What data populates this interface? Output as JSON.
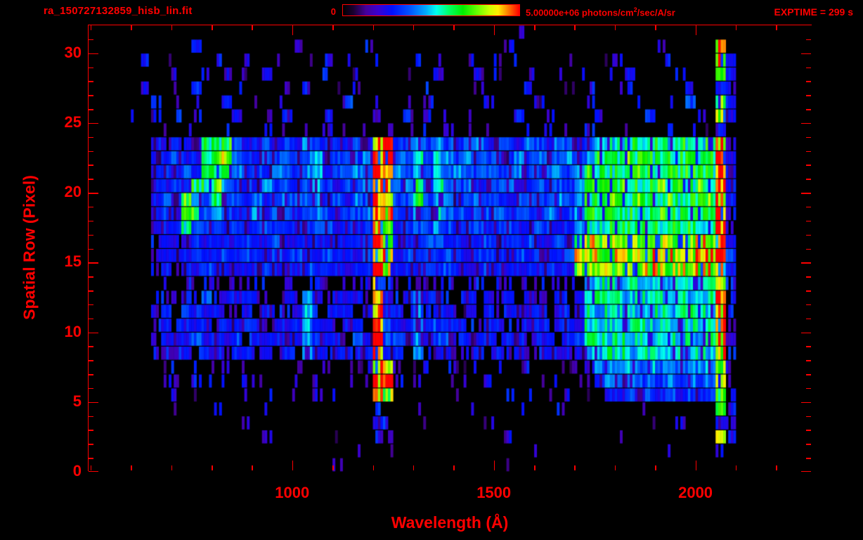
{
  "colors": {
    "accent": "#ff0000",
    "background": "#000000"
  },
  "header": {
    "filename": "ra_150727132859_hisb_lin.fit",
    "colorbar_min": "0",
    "colorbar_max": {
      "prefix": "5.00000e+06 photons/cm",
      "sup": "2",
      "suffix": "/sec/A/sr"
    },
    "exptime": "EXPTIME = 299 s"
  },
  "chart_data": {
    "type": "heatmap",
    "title": "ra_150727132859_hisb_lin.fit",
    "xlabel": "Wavelength (Å)",
    "ylabel": "Spatial Row (Pixel)",
    "xlim": [
      495,
      2290
    ],
    "ylim": [
      0,
      32
    ],
    "x_major_ticks": [
      1000,
      1500,
      2000
    ],
    "x_tick_labels": [
      "1000",
      "1500",
      "2000"
    ],
    "x_minor_step": 100,
    "y_major_ticks": [
      0,
      5,
      10,
      15,
      20,
      25,
      30
    ],
    "y_tick_labels": [
      "0",
      "5",
      "10",
      "15",
      "20",
      "25",
      "30"
    ],
    "y_minor_step": 1,
    "exposure_seconds": 299,
    "colorbar": {
      "min": 0,
      "max": 5000000,
      "max_label": "5.00000e+06",
      "units": "photons/cm2/sec/A/sr",
      "stops": [
        {
          "t": 0.0,
          "c": "#000000"
        },
        {
          "t": 0.06,
          "c": "#1a0030"
        },
        {
          "t": 0.13,
          "c": "#44009a"
        },
        {
          "t": 0.2,
          "c": "#3a00d0"
        },
        {
          "t": 0.28,
          "c": "#0010ff"
        },
        {
          "t": 0.38,
          "c": "#0055ff"
        },
        {
          "t": 0.47,
          "c": "#00aaff"
        },
        {
          "t": 0.53,
          "c": "#00ffee"
        },
        {
          "t": 0.6,
          "c": "#00ff66"
        },
        {
          "t": 0.68,
          "c": "#00ee00"
        },
        {
          "t": 0.76,
          "c": "#66ff00"
        },
        {
          "t": 0.83,
          "c": "#ccff00"
        },
        {
          "t": 0.88,
          "c": "#ffee00"
        },
        {
          "t": 0.93,
          "c": "#ff8800"
        },
        {
          "t": 1.0,
          "c": "#ff0000"
        }
      ]
    },
    "grid": {
      "x_start": 600,
      "x_end": 2200,
      "y_top": 32,
      "y_bottom": 0,
      "value_encoding": "hex digit 0-f = intensity 0 .. 5e6 photons/cm2/sec/A/sr (linear)",
      "rows_top_to_bottom": [
        "0000000000000000001000000000000000000010000000000000000000000000",
        "0010002000010000200010030000010001000200001000100001300000d00000",
        "0201001030020010010302001000201002001030010200013001020000d40000",
        "0010300102010400100300102001003000401002001030010400103000940000",
        "0200103000102001030010200100030100200103000102001300010200430000",
        "1030201004001030200105003001020010030010400103001020010500a40000",
        "2010302010400205010300201005030102001040030010200105001030d40000",
        "1102010302010302010301020301020301020103020103010203010201320000",
        "004343499a54454546545454de55756545645546546545888988989889e30000",
        "00445449ab65455656745556ef66857656556465655656999a99a9999af40000",
        "00454549a965546556845565fe6585766556556556656a9999a9999a99f40000",
        "00445499a655465546754556ef5695865645564565556999a999a999a9e40000",
        "00454a659554645656645465fe55a576456554565565699a99a99a999ae40000",
        "004549a56545645545654556ed54657654556455465569899999a99999e30000",
        "004448555454554545554545ec45556545545544554568899998999989e30000",
        "003434544445445445444445ec444554444544454454bcbbbcbbcbbbcbf40000",
        "003444544545445454454445fd454555445544545445cdccdccddcdcddf50000",
        "003434454444454445444454ec444545444544444544bbcbcbbccbcbccf40000",
        "001213122123121312321213c312213212312312312316887887878778d30000",
        "002324253424332437423442f434644324342434334247888787888778e30000",
        "002425344334243347334424e443634434243443424348787878878887e30000",
        "003434453443434447443443f544645443344334434448888887887888e30000",
        "003444544453444547544354f554645534443443443458888788887878e30000",
        "002334344344343437434434e443634433434243344347788778787787d30000",
        "001120211202112021120211db21120211202112021123676767676667c30000",
        "000210210201201020102101ed10201201021020102012465656565656b30000",
        "000120100102010010201020cb01201020010201020101344545454545a20000",
        "0000100020000100001000203200100001000010002000010010020000920000",
        "0000010000020000100001004310010000010000200001000001002000430000",
        "0000001000000200000010003200001000000100000100002000010000d20000",
        "0000000000100000000000100100000000000000100000000000010000200000",
        "0000000000000000000010000000000000000100000000000000000000000000"
      ]
    },
    "speckle": {
      "seed": 7,
      "subcols": 4
    }
  }
}
